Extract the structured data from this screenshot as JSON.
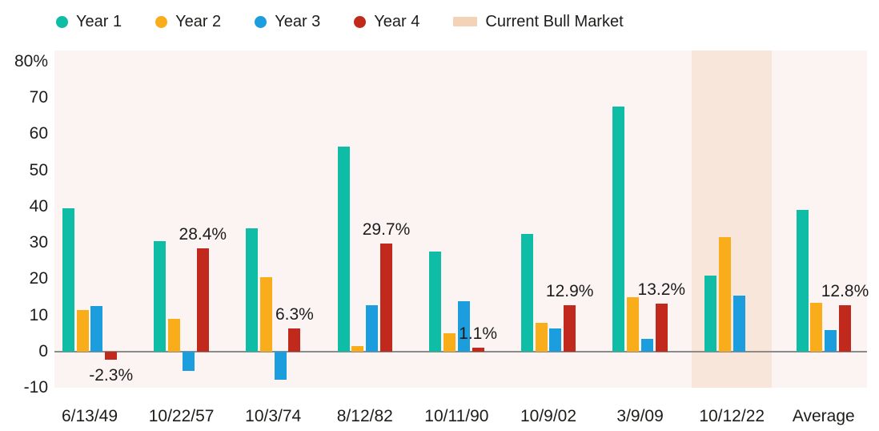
{
  "chart_data": {
    "type": "bar",
    "title": "",
    "categories": [
      "6/13/49",
      "10/22/57",
      "10/3/74",
      "8/12/82",
      "10/11/90",
      "10/9/02",
      "3/9/09",
      "10/12/22",
      "Average"
    ],
    "series": [
      {
        "name": "Year 1",
        "color": "#0FBCA5",
        "values": [
          39.5,
          30.5,
          34,
          56.5,
          27.5,
          32.5,
          67.5,
          21,
          39
        ]
      },
      {
        "name": "Year 2",
        "color": "#FAAD1B",
        "values": [
          11.5,
          9,
          20.5,
          1.5,
          5,
          8,
          15,
          31.5,
          13.5
        ]
      },
      {
        "name": "Year 3",
        "color": "#1B9DDE",
        "values": [
          12.5,
          -5.3,
          -7.8,
          12.8,
          14,
          6.3,
          3.5,
          15.5,
          6
        ]
      },
      {
        "name": "Year 4",
        "color": "#C1291D",
        "values": [
          -2.3,
          28.4,
          6.3,
          29.7,
          1.1,
          12.9,
          13.2,
          null,
          12.8
        ]
      }
    ],
    "data_labels": {
      "series": "Year 4",
      "values": [
        "-2.3%",
        "28.4%",
        "6.3%",
        "29.7%",
        "1.1%",
        "12.9%",
        "13.2%",
        null,
        "12.8%"
      ]
    },
    "legend": [
      {
        "label": "Year 1",
        "swatch": "dot",
        "color": "#0FBCA5"
      },
      {
        "label": "Year 2",
        "swatch": "dot",
        "color": "#FAAD1B"
      },
      {
        "label": "Year 3",
        "swatch": "dot",
        "color": "#1B9DDE"
      },
      {
        "label": "Year 4",
        "swatch": "dot",
        "color": "#C1291D"
      },
      {
        "label": "Current Bull Market",
        "swatch": "rect",
        "color": "#F3D2B5"
      }
    ],
    "highlight": {
      "category": "10/12/22",
      "label": "Current Bull Market",
      "color": "#F9E6DA"
    },
    "y_axis": {
      "min": -10,
      "max": 80,
      "tick_step": 10,
      "tick_labels": [
        "80%",
        "70",
        "60",
        "50",
        "40",
        "30",
        "20",
        "10",
        "0",
        "-10"
      ]
    },
    "legend_position": "top",
    "grid": false,
    "styles": {
      "plot_bg": "#FBF4F2",
      "axis_line": "#8B8B8B",
      "text": "#1D1D1B"
    }
  }
}
